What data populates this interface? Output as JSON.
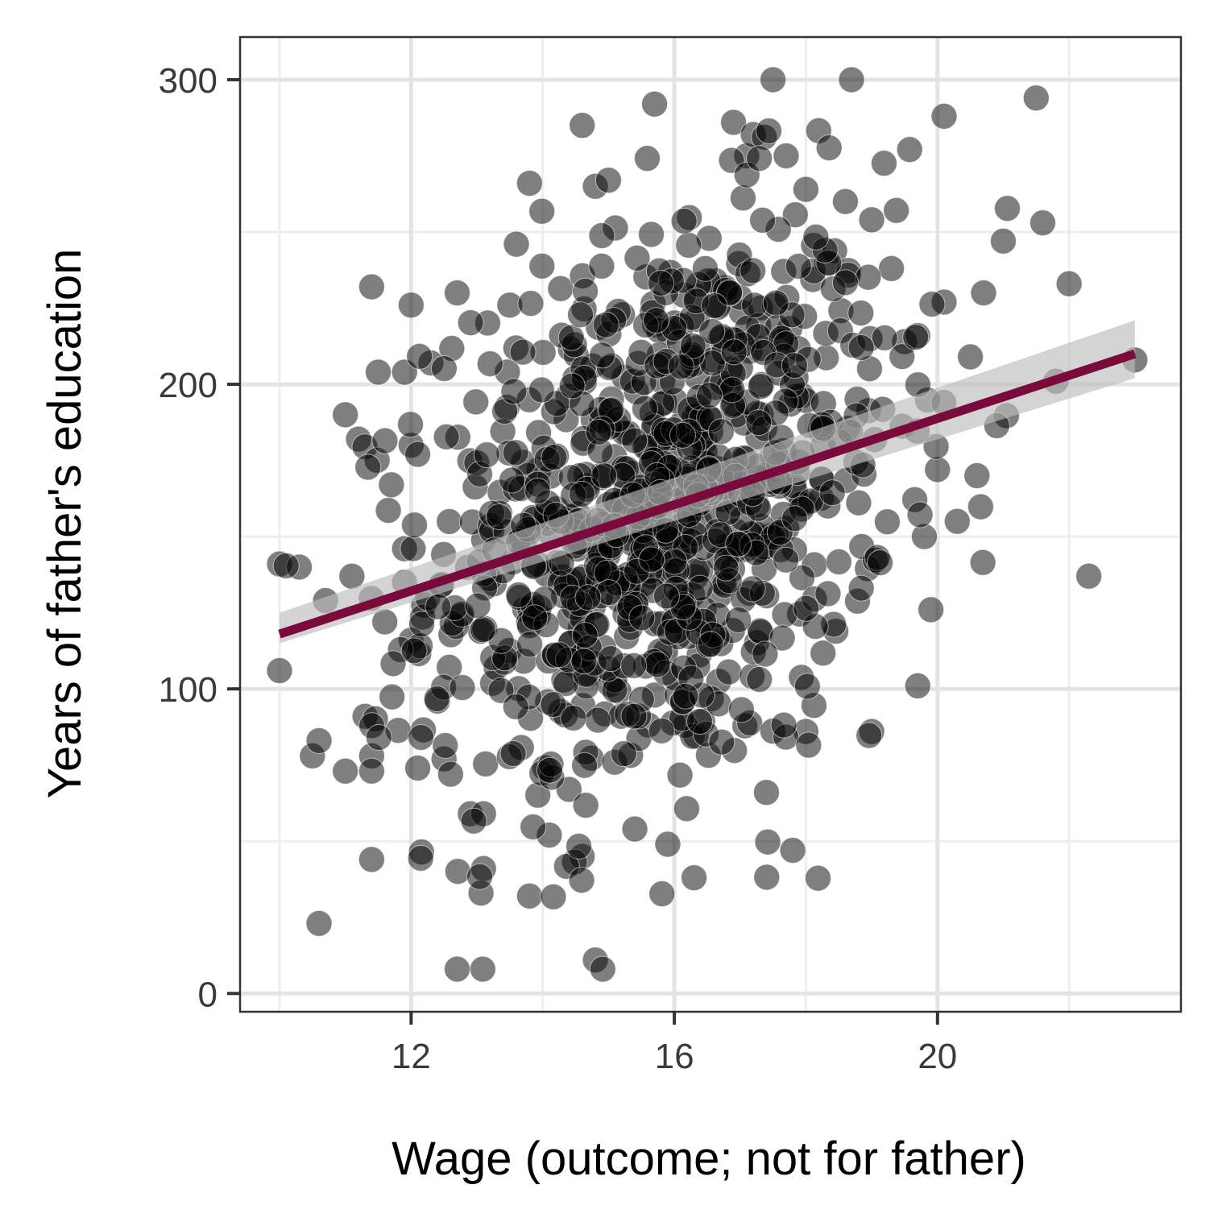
{
  "chart_data": {
    "type": "scatter",
    "xlabel": "Wage (outcome; not for father)",
    "ylabel": "Years of father's education",
    "xlim": [
      9.4,
      23.7
    ],
    "ylim": [
      -6,
      314
    ],
    "x_ticks": [
      12,
      16,
      20
    ],
    "x_tick_labels": [
      "12",
      "16",
      "20"
    ],
    "y_ticks": [
      0,
      100,
      200,
      300
    ],
    "y_tick_labels": [
      "0",
      "100",
      "200",
      "300"
    ],
    "x_minor_ticks": [
      10,
      14,
      18,
      22
    ],
    "y_minor_ticks": [
      50,
      150,
      250
    ],
    "grid": true,
    "legend": "none",
    "point_color": "#000000",
    "point_alpha": 0.5,
    "point_count_approx": 1000,
    "trend_line": {
      "method": "linear",
      "x": [
        10,
        23
      ],
      "y": [
        118,
        210
      ],
      "se_band_lower": [
        115,
        202
      ],
      "se_band_upper": [
        125,
        221
      ],
      "color": "#7a0a3c",
      "band_color": "#bdbdbd"
    },
    "points_highlight": [
      {
        "x": 10.0,
        "y": 141
      },
      {
        "x": 10.0,
        "y": 106
      },
      {
        "x": 10.3,
        "y": 140
      },
      {
        "x": 10.5,
        "y": 78
      },
      {
        "x": 10.6,
        "y": 83
      },
      {
        "x": 10.6,
        "y": 23
      },
      {
        "x": 10.7,
        "y": 129
      },
      {
        "x": 11.0,
        "y": 73
      },
      {
        "x": 11.0,
        "y": 190
      },
      {
        "x": 11.1,
        "y": 137
      },
      {
        "x": 11.2,
        "y": 182
      },
      {
        "x": 11.3,
        "y": 91
      },
      {
        "x": 11.4,
        "y": 78
      },
      {
        "x": 11.4,
        "y": 73
      },
      {
        "x": 11.4,
        "y": 44
      },
      {
        "x": 11.4,
        "y": 232
      },
      {
        "x": 11.5,
        "y": 204
      },
      {
        "x": 11.6,
        "y": 122
      },
      {
        "x": 11.7,
        "y": 167
      },
      {
        "x": 11.9,
        "y": 204
      },
      {
        "x": 11.9,
        "y": 146
      },
      {
        "x": 11.9,
        "y": 135
      },
      {
        "x": 12.0,
        "y": 226
      },
      {
        "x": 12.0,
        "y": 180
      },
      {
        "x": 12.0,
        "y": 116
      },
      {
        "x": 12.1,
        "y": 177
      },
      {
        "x": 12.1,
        "y": 74
      },
      {
        "x": 12.3,
        "y": 207
      },
      {
        "x": 12.4,
        "y": 96
      },
      {
        "x": 12.5,
        "y": 77
      },
      {
        "x": 12.6,
        "y": 72
      },
      {
        "x": 12.7,
        "y": 230
      },
      {
        "x": 12.7,
        "y": 8
      },
      {
        "x": 12.9,
        "y": 59
      },
      {
        "x": 13.1,
        "y": 59
      },
      {
        "x": 13.1,
        "y": 41
      },
      {
        "x": 13.5,
        "y": 226
      },
      {
        "x": 13.6,
        "y": 246
      },
      {
        "x": 13.8,
        "y": 266
      },
      {
        "x": 13.8,
        "y": 32
      },
      {
        "x": 14.1,
        "y": 52
      },
      {
        "x": 14.4,
        "y": 67
      },
      {
        "x": 14.6,
        "y": 285
      },
      {
        "x": 14.6,
        "y": 45
      },
      {
        "x": 14.8,
        "y": 265
      },
      {
        "x": 14.8,
        "y": 11
      },
      {
        "x": 15.0,
        "y": 267
      },
      {
        "x": 15.4,
        "y": 54
      },
      {
        "x": 15.7,
        "y": 292
      },
      {
        "x": 15.9,
        "y": 49
      },
      {
        "x": 16.3,
        "y": 38
      },
      {
        "x": 16.9,
        "y": 286
      },
      {
        "x": 17.1,
        "y": 275
      },
      {
        "x": 17.2,
        "y": 282
      },
      {
        "x": 17.4,
        "y": 66
      },
      {
        "x": 17.5,
        "y": 300
      },
      {
        "x": 17.7,
        "y": 275
      },
      {
        "x": 17.8,
        "y": 47
      },
      {
        "x": 18.0,
        "y": 264
      },
      {
        "x": 18.0,
        "y": 86
      },
      {
        "x": 18.6,
        "y": 260
      },
      {
        "x": 19.0,
        "y": 254
      },
      {
        "x": 19.0,
        "y": 86
      },
      {
        "x": 19.3,
        "y": 238
      },
      {
        "x": 19.5,
        "y": 214
      },
      {
        "x": 19.7,
        "y": 216
      },
      {
        "x": 19.7,
        "y": 101
      },
      {
        "x": 19.8,
        "y": 150
      },
      {
        "x": 19.9,
        "y": 126
      },
      {
        "x": 20.0,
        "y": 172
      },
      {
        "x": 20.1,
        "y": 288
      },
      {
        "x": 20.1,
        "y": 227
      },
      {
        "x": 20.3,
        "y": 155
      },
      {
        "x": 20.5,
        "y": 209
      },
      {
        "x": 20.6,
        "y": 170
      },
      {
        "x": 20.7,
        "y": 230
      },
      {
        "x": 21.0,
        "y": 247
      },
      {
        "x": 21.5,
        "y": 294
      },
      {
        "x": 21.6,
        "y": 253
      },
      {
        "x": 21.8,
        "y": 201
      },
      {
        "x": 22.0,
        "y": 233
      },
      {
        "x": 22.3,
        "y": 137
      },
      {
        "x": 23.0,
        "y": 208
      }
    ]
  }
}
